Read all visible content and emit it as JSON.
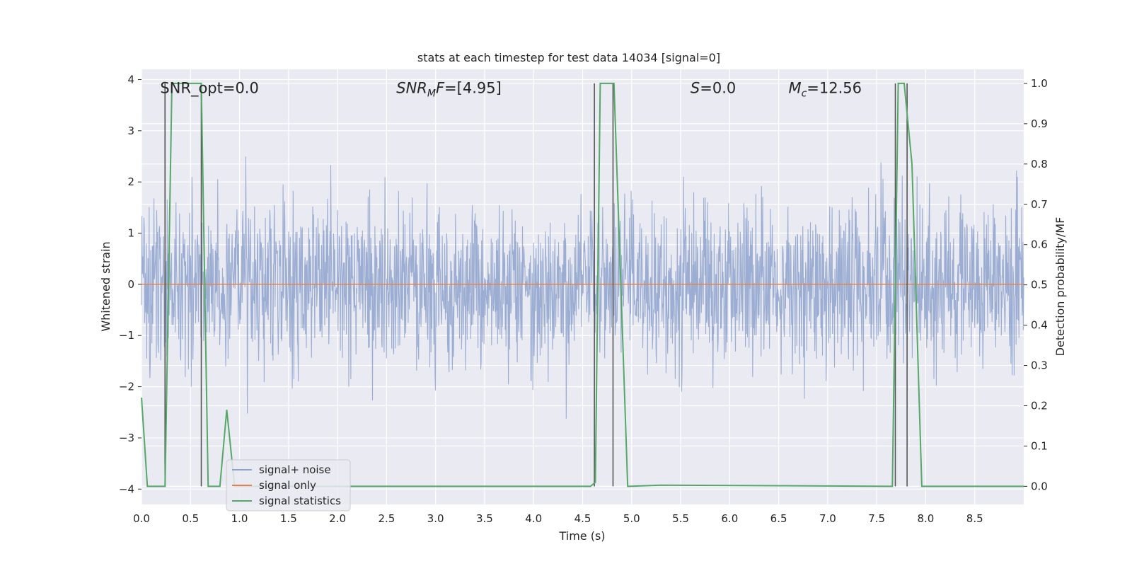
{
  "chart_data": {
    "type": "line",
    "title": "stats at each timestep for test data 14034 [signal=0]",
    "xlabel": "Time (s)",
    "ylabel": "Whitened strain",
    "y2label": "Detection probability/MF",
    "xlim": [
      0,
      9.0
    ],
    "ylim": [
      -4.3,
      4.2
    ],
    "y2lim": [
      -0.045,
      1.035
    ],
    "grid": true,
    "x_ticks": [
      "0.0",
      "0.5",
      "1.0",
      "1.5",
      "2.0",
      "2.5",
      "3.0",
      "3.5",
      "4.0",
      "4.5",
      "5.0",
      "5.5",
      "6.0",
      "6.5",
      "7.0",
      "7.5",
      "8.0",
      "8.5"
    ],
    "y_ticks": [
      "4",
      "3",
      "2",
      "1",
      "0",
      "−1",
      "−2",
      "−3",
      "−4"
    ],
    "y2_ticks": [
      "1.0",
      "0.9",
      "0.8",
      "0.7",
      "0.6",
      "0.5",
      "0.4",
      "0.3",
      "0.2",
      "0.1",
      "0.0"
    ],
    "annotations": [
      {
        "text": "SNR_opt=0.0",
        "x": 0.19,
        "y": 3.85,
        "style": "normal"
      },
      {
        "text": "[4.95]",
        "prefix": "SNR",
        "sub": "M",
        "mid": "F=",
        "x": 2.6,
        "y": 3.85,
        "style": "math"
      },
      {
        "text": "=0.0",
        "prefix": "S",
        "x": 5.6,
        "y": 3.85,
        "style": "math"
      },
      {
        "text": "=12.56",
        "prefix": "M",
        "sub": "c",
        "x": 6.6,
        "y": 3.85,
        "style": "math"
      }
    ],
    "legend": {
      "placement": "lower-left",
      "entries": [
        "signal+ noise",
        "signal only",
        "signal statistics"
      ]
    },
    "series": [
      {
        "name": "signal+ noise",
        "color": "#8da2cc",
        "kind": "noise",
        "amplitude_std": 0.62,
        "range": [
          -4.0,
          3.85
        ],
        "axis": "left"
      },
      {
        "name": "signal only",
        "color": "#dd8452",
        "values": [
          [
            0.0,
            0.0
          ],
          [
            9.0,
            0.0
          ]
        ],
        "axis": "left"
      },
      {
        "name": "signal statistics",
        "color": "#55a868",
        "axis": "right",
        "values": [
          [
            0.0,
            0.22
          ],
          [
            0.06,
            0.0
          ],
          [
            0.24,
            0.0
          ],
          [
            0.31,
            1.0
          ],
          [
            0.61,
            1.0
          ],
          [
            0.68,
            0.0
          ],
          [
            0.8,
            0.0
          ],
          [
            0.87,
            0.19
          ],
          [
            0.95,
            0.0
          ],
          [
            4.58,
            0.0
          ],
          [
            4.63,
            0.01
          ],
          [
            4.68,
            1.0
          ],
          [
            4.82,
            1.0
          ],
          [
            4.96,
            0.0
          ],
          [
            5.3,
            0.003
          ],
          [
            7.66,
            0.0
          ],
          [
            7.72,
            1.0
          ],
          [
            7.78,
            1.0
          ],
          [
            7.86,
            0.8
          ],
          [
            7.96,
            0.0
          ],
          [
            9.0,
            0.0
          ]
        ]
      }
    ],
    "vertical_lines": [
      0.24,
      0.61,
      4.62,
      4.81,
      7.69,
      7.81
    ],
    "colors": {
      "background": "#eaeaf2",
      "grid": "#ffffff",
      "vline": "#555555"
    }
  }
}
